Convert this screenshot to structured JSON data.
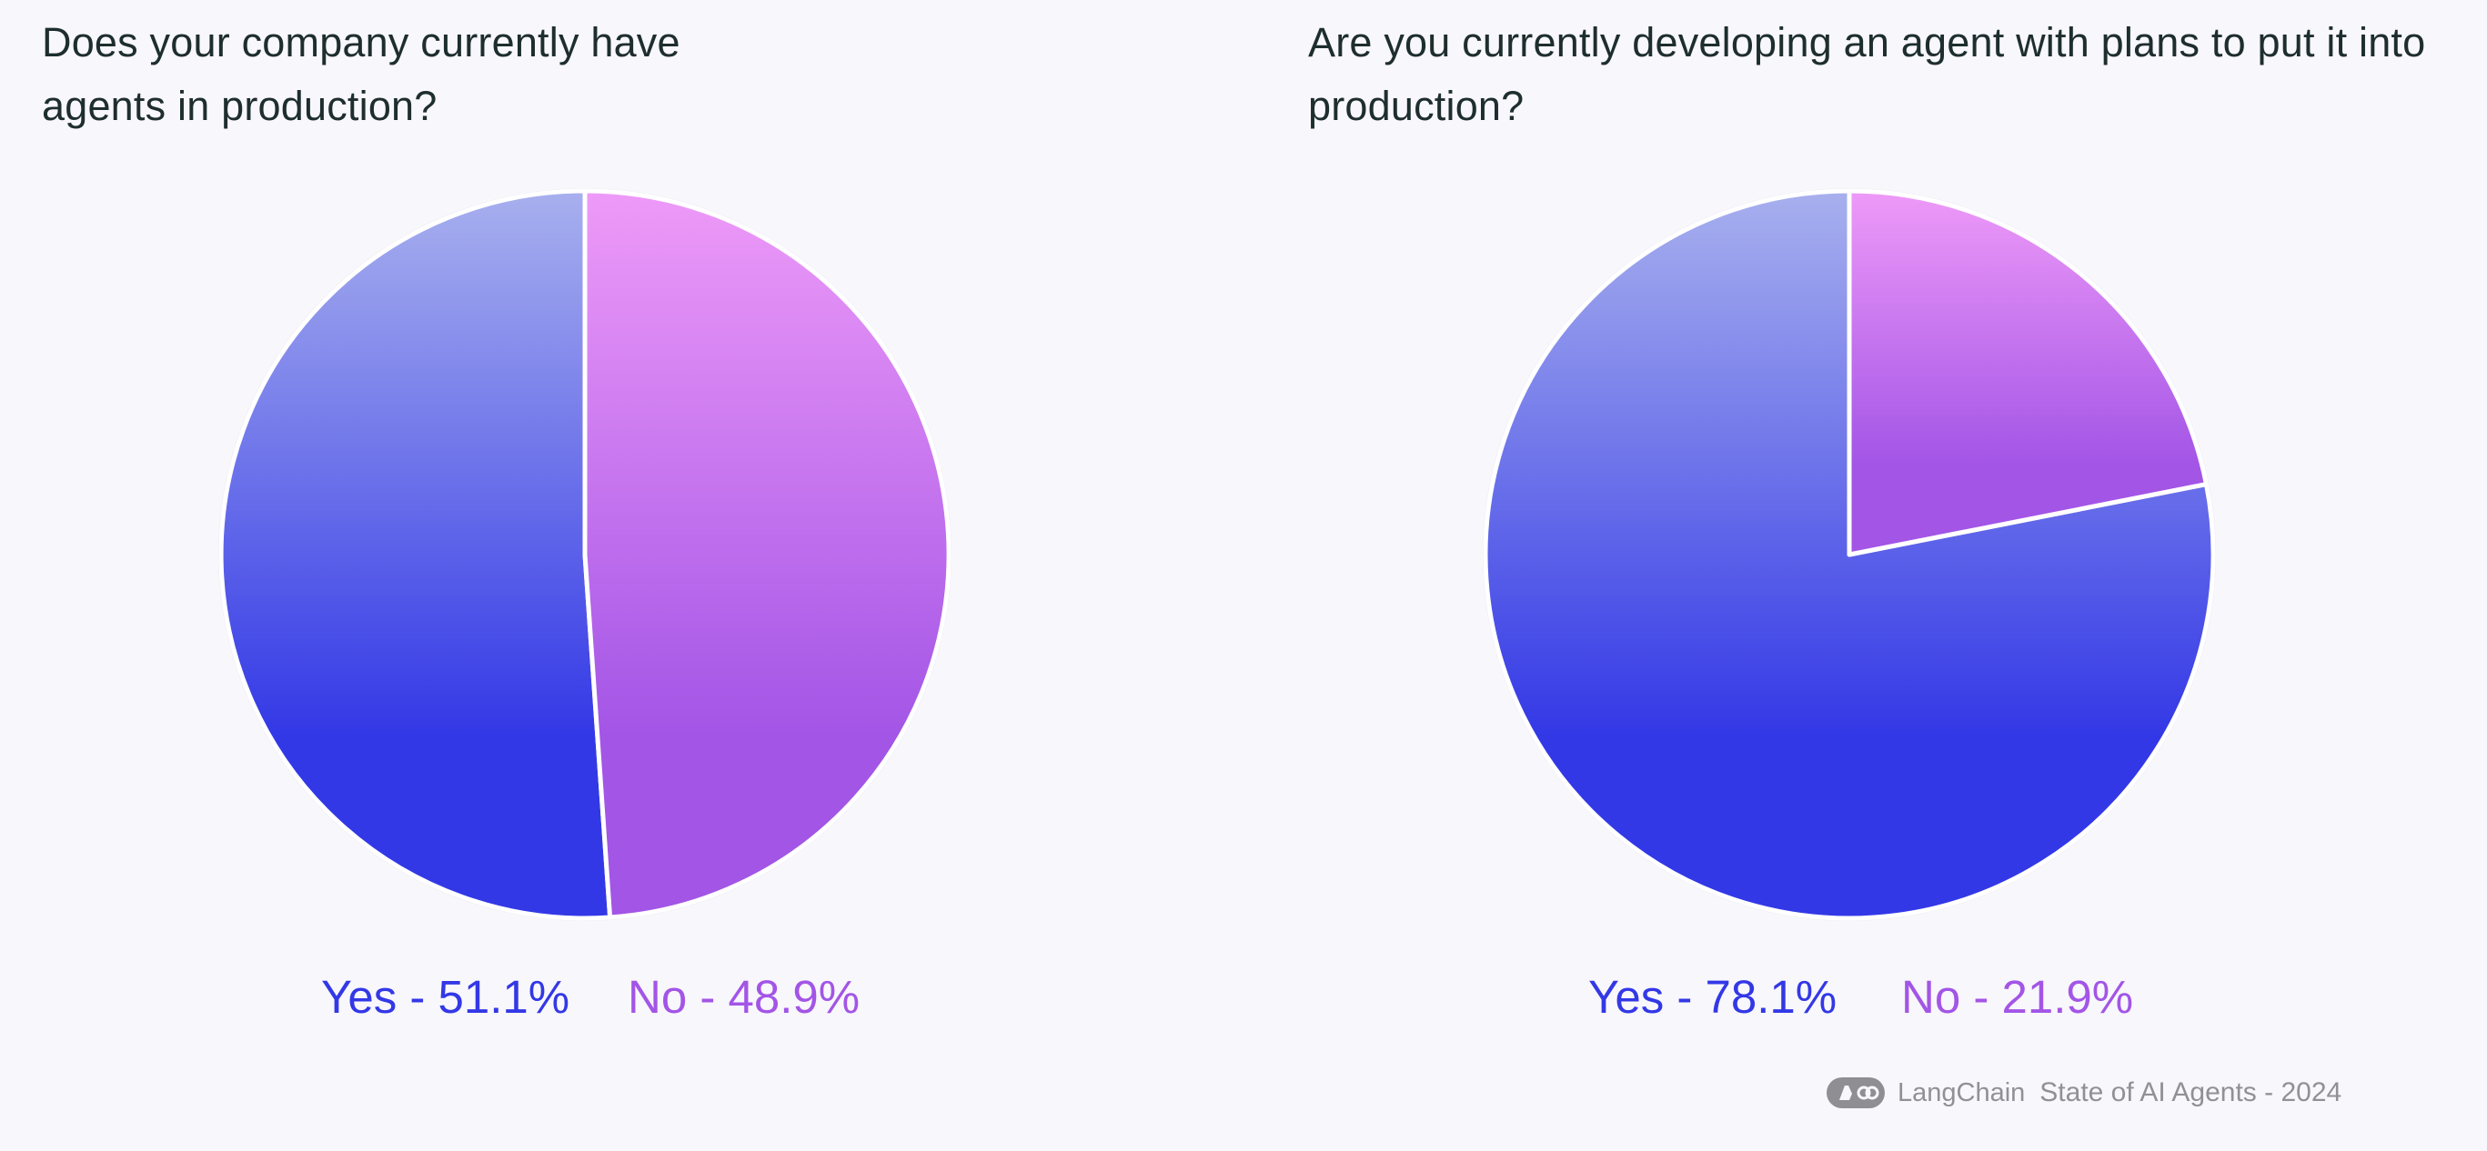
{
  "chart_data": [
    {
      "type": "pie",
      "title": "Does your company currently have agents in production?",
      "slices": [
        {
          "label": "Yes",
          "value": 51.1,
          "display": "Yes - 51.1%",
          "color": "#3338e6"
        },
        {
          "label": "No",
          "value": 48.9,
          "display": "No - 48.9%",
          "color": "#a355e6"
        }
      ],
      "legend": "bottom"
    },
    {
      "type": "pie",
      "title": "Are you currently developing an agent with plans to put it into production?",
      "slices": [
        {
          "label": "Yes",
          "value": 78.1,
          "display": "Yes - 78.1%",
          "color": "#3338e6"
        },
        {
          "label": "No",
          "value": 21.9,
          "display": "No - 21.9%",
          "color": "#a355e6"
        }
      ],
      "legend": "bottom"
    }
  ],
  "footer": {
    "brand": "LangChain",
    "report": "State of AI Agents - 2024",
    "logo_icon": "langchain-logo-icon"
  }
}
